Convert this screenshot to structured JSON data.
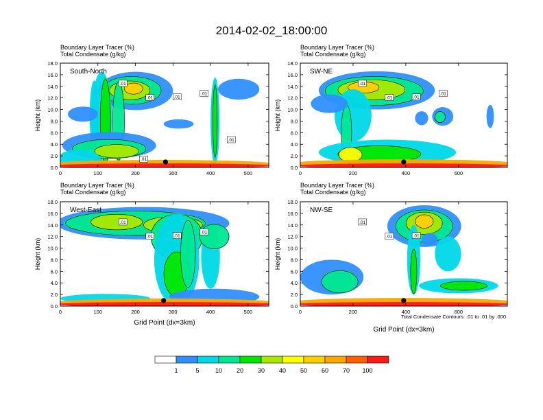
{
  "title": "2014-02-02_18:00:00",
  "footnote": "Total Condensate Contours: .01 to .01 by .000",
  "colors": [
    "#ffffff",
    "#2f8fff",
    "#00d8e8",
    "#00e890",
    "#00e800",
    "#a8e800",
    "#ffff00",
    "#ffcf00",
    "#ffa500",
    "#ff5f00",
    "#ff1a1a"
  ],
  "chart_data": [
    {
      "type": "contour",
      "panel_label": "South-North",
      "title_lines": [
        "Boundary Layer Tracer   (%)",
        "Total Condensate   (g/kg)"
      ],
      "ylabel": "Height (km)",
      "xlabel": "",
      "xlim": [
        0,
        555
      ],
      "ylim": [
        0,
        18
      ],
      "xticks": [
        0,
        100,
        200,
        300,
        400,
        500
      ],
      "yticks": [
        "0.0",
        "2.0",
        "4.0",
        "6.0",
        "8.0",
        "10.0",
        "12.0",
        "14.0",
        "16.0",
        "18.0"
      ],
      "contour_labels": [
        ".01",
        ".01",
        ".01",
        ".01",
        ".01",
        ".01"
      ],
      "marker_x": 280
    },
    {
      "type": "contour",
      "panel_label": "SW-NE",
      "title_lines": [
        "Boundary Layer Tracer   (%)",
        "Total Condensate   (g/kg)"
      ],
      "ylabel": "Height (km)",
      "xlabel": "",
      "xlim": [
        0,
        785
      ],
      "ylim": [
        0,
        18
      ],
      "xticks": [
        0,
        200,
        400,
        600
      ],
      "yticks": [
        "0.0",
        "2.0",
        "4.0",
        "6.0",
        "8.0",
        "10.0",
        "12.0",
        "14.0",
        "16.0",
        "18.0"
      ],
      "contour_labels": [
        ".01",
        ".01",
        ".01",
        ".01"
      ],
      "marker_x": 392
    },
    {
      "type": "contour",
      "panel_label": "West-East",
      "title_lines": [
        "Boundary Layer Tracer   (%)",
        "Total Condensate   (g/kg)"
      ],
      "ylabel": "Height (km)",
      "xlabel": "Grid Point (dx=3km)",
      "xlim": [
        0,
        555
      ],
      "ylim": [
        0,
        18
      ],
      "xticks": [
        0,
        100,
        200,
        300,
        400,
        500
      ],
      "yticks": [
        "0.0",
        "2.0",
        "4.0",
        "6.0",
        "8.0",
        "10.0",
        "12.0",
        "14.0",
        "16.0",
        "18.0"
      ],
      "contour_labels": [
        ".01",
        ".01",
        ".01",
        ".01"
      ],
      "marker_x": 275
    },
    {
      "type": "contour",
      "panel_label": "NW-SE",
      "title_lines": [
        "Boundary Layer Tracer   (%)",
        "Total Condensate   (g/kg)"
      ],
      "ylabel": "Height (km)",
      "xlabel": "Grid Point (dx=3km)",
      "xlim": [
        0,
        785
      ],
      "ylim": [
        0,
        18
      ],
      "xticks": [
        0,
        200,
        400,
        600
      ],
      "yticks": [
        "0.0",
        "2.0",
        "4.0",
        "6.0",
        "8.0",
        "10.0",
        "12.0",
        "14.0",
        "16.0",
        "18.0"
      ],
      "contour_labels": [
        ".01",
        ".01",
        ".01"
      ],
      "marker_x": 392
    }
  ],
  "colorbar": {
    "levels": [
      "1",
      "5",
      "10",
      "20",
      "30",
      "40",
      "50",
      "60",
      "70",
      "100"
    ]
  }
}
